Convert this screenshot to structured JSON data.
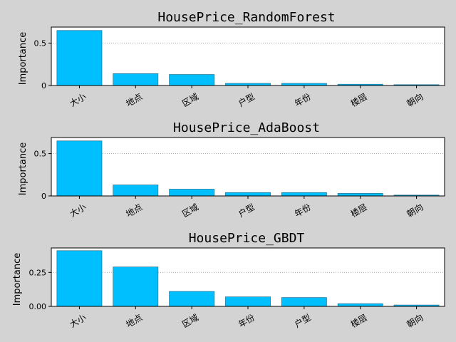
{
  "figure": {
    "background": "#d3d3d3"
  },
  "style": {
    "bar_color": "#00bfff",
    "bar_edge": "#1f6f8f",
    "grid_color": "#a0a0a0"
  },
  "chart_data": [
    {
      "type": "bar",
      "title": "HousePrice_RandomForest",
      "ylabel": "Importance",
      "categories": [
        "大小",
        "地点",
        "区域",
        "户型",
        "年份",
        "楼层",
        "朝向"
      ],
      "values": [
        0.65,
        0.14,
        0.13,
        0.025,
        0.025,
        0.015,
        0.01
      ],
      "ylim": [
        0,
        0.69
      ],
      "yticks": [
        0,
        0.5
      ],
      "yticklabels": [
        "0",
        "0.5"
      ],
      "grid": "y-dotted"
    },
    {
      "type": "bar",
      "title": "HousePrice_AdaBoost",
      "ylabel": "Importance",
      "categories": [
        "大小",
        "地点",
        "区域",
        "户型",
        "年份",
        "楼层",
        "朝向"
      ],
      "values": [
        0.65,
        0.13,
        0.08,
        0.04,
        0.04,
        0.03,
        0.01
      ],
      "ylim": [
        0,
        0.69
      ],
      "yticks": [
        0,
        0.5
      ],
      "yticklabels": [
        "0",
        "0.5"
      ],
      "grid": "y-dotted"
    },
    {
      "type": "bar",
      "title": "HousePrice_GBDT",
      "ylabel": "Importance",
      "categories": [
        "大小",
        "地点",
        "区域",
        "年份",
        "户型",
        "楼层",
        "朝向"
      ],
      "values": [
        0.41,
        0.29,
        0.11,
        0.07,
        0.065,
        0.02,
        0.01
      ],
      "ylim": [
        0,
        0.43
      ],
      "yticks": [
        0,
        0.25
      ],
      "yticklabels": [
        "0.00",
        "0.25"
      ],
      "grid": "y-dotted"
    }
  ]
}
